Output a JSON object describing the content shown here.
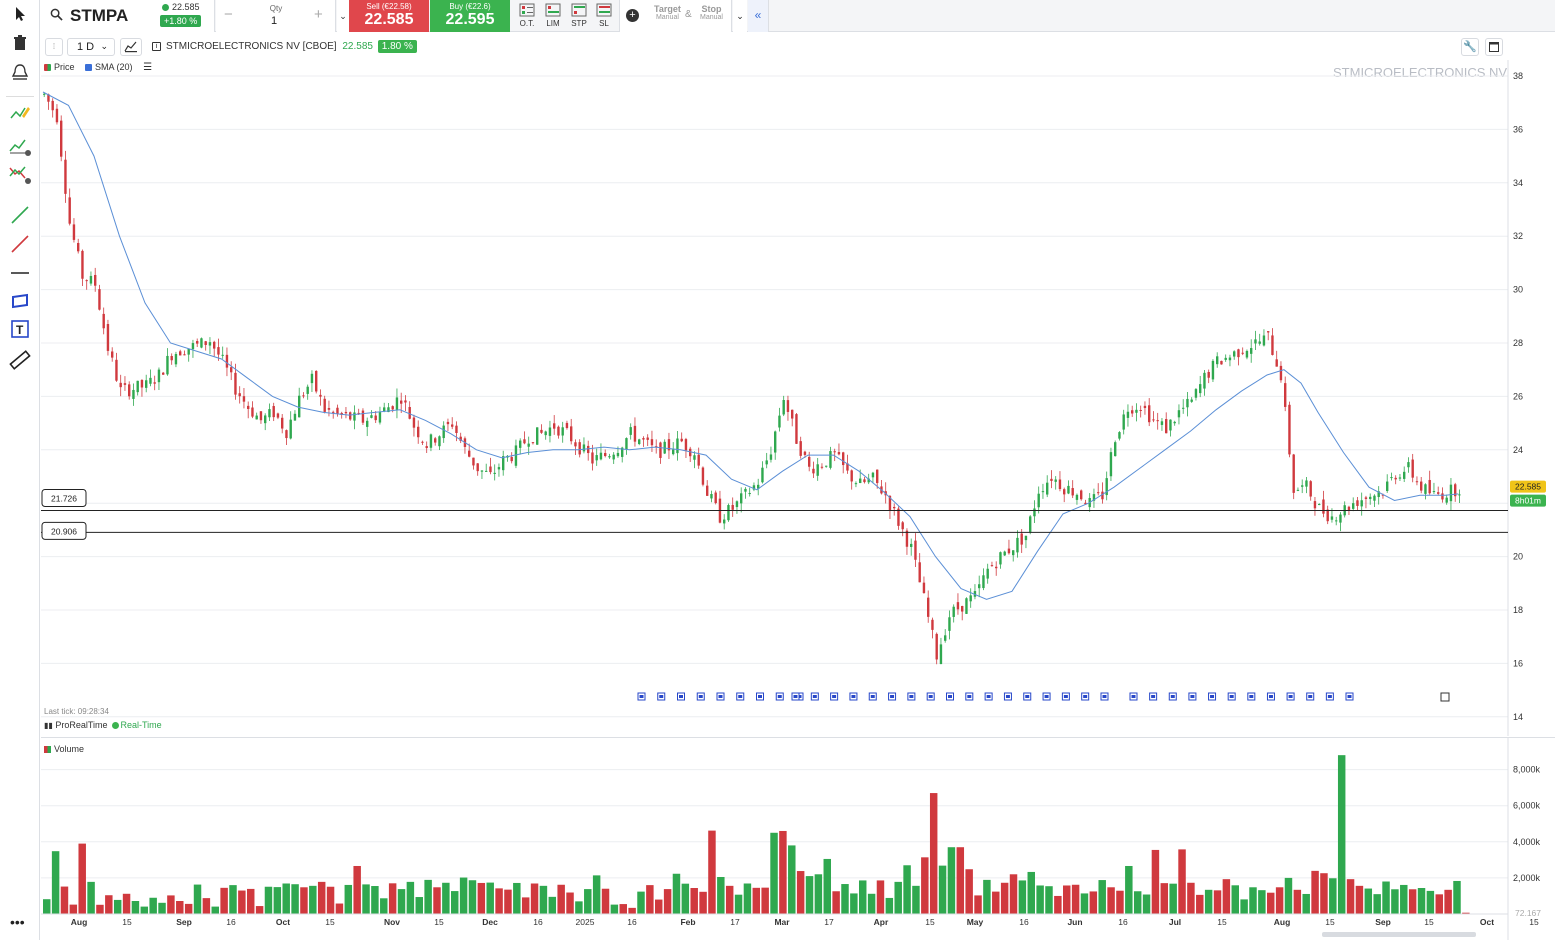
{
  "topbar": {
    "symbol": "STMPA",
    "last_price": "22.585",
    "change": "+1.80 %",
    "qty_label": "Qty",
    "qty_value": "1",
    "minus": "−",
    "plus": "+",
    "sell_label": "Sell (€22.58)",
    "sell_price": "22.585",
    "buy_label": "Buy (€22.6)",
    "buy_price": "22.595",
    "order_types": [
      "O.T.",
      "LIM",
      "STP",
      "SL"
    ],
    "target_label": "Target",
    "target_sub": "Manual",
    "amp": "&",
    "stop_label": "Stop",
    "stop_sub": "Manual"
  },
  "chart_header": {
    "timeframe": "1 D",
    "instrument": "STMICROELECTRONICS NV [CBOE]",
    "price": "22.585",
    "change_badge": "1.80 %",
    "legend_price": "Price",
    "legend_sma": "SMA (20)",
    "watermark": "STMICROELECTRONICS NV",
    "last_tick": "Last tick: 09:28:34",
    "provider": "ProRealTime",
    "realtime": "Real-Time",
    "volume_legend": "Volume",
    "current_price_tag": "22.585",
    "countdown_tag": "8h01m",
    "hline_labels": [
      "21.726",
      "20.906"
    ],
    "volume_last_tag": "72.167"
  },
  "colors": {
    "up": "#2fa84f",
    "down": "#d0393e",
    "sma": "#5b8fd6",
    "accent": "#3a6fd8"
  },
  "chart_data": {
    "type": "candlestick",
    "price_axis": {
      "ticks": [
        14,
        16,
        18,
        20,
        22,
        24,
        26,
        28,
        30,
        32,
        34,
        36,
        38
      ],
      "range": [
        14,
        38.5
      ]
    },
    "volume_axis": {
      "ticks": [
        "2,000k",
        "4,000k",
        "6,000k",
        "8,000k"
      ],
      "range_k": [
        0,
        9200
      ]
    },
    "x_labels": [
      "Aug",
      "15",
      "Sep",
      "16",
      "Oct",
      "15",
      "Nov",
      "15",
      "Dec",
      "16",
      "2025",
      "16",
      "Feb",
      "17",
      "Mar",
      "17",
      "Apr",
      "15",
      "May",
      "16",
      "Jun",
      "16",
      "Jul",
      "15",
      "Aug",
      "15",
      "Sep",
      "15",
      "Oct",
      "15"
    ],
    "horizontal_lines": [
      21.726,
      20.906
    ],
    "price_path": [
      [
        0,
        37.3
      ],
      [
        3,
        36.5
      ],
      [
        6,
        32.5
      ],
      [
        9,
        30.5
      ],
      [
        12,
        30.2
      ],
      [
        15,
        27.8
      ],
      [
        18,
        26.2
      ],
      [
        21,
        26.3
      ],
      [
        24,
        26.4
      ],
      [
        27,
        26.8
      ],
      [
        30,
        27.6
      ],
      [
        33,
        27.8
      ],
      [
        36,
        27.9
      ],
      [
        39,
        28.1
      ],
      [
        42,
        27.3
      ],
      [
        45,
        26.3
      ],
      [
        48,
        25.6
      ],
      [
        51,
        25.1
      ],
      [
        54,
        25.4
      ],
      [
        57,
        24.7
      ],
      [
        60,
        25.9
      ],
      [
        63,
        26.6
      ],
      [
        66,
        25.5
      ],
      [
        69,
        25.3
      ],
      [
        72,
        25.2
      ],
      [
        75,
        25.1
      ],
      [
        78,
        25.3
      ],
      [
        81,
        25.6
      ],
      [
        84,
        26.0
      ],
      [
        87,
        24.9
      ],
      [
        90,
        24.2
      ],
      [
        93,
        24.6
      ],
      [
        96,
        25.0
      ],
      [
        99,
        24.0
      ],
      [
        102,
        23.3
      ],
      [
        105,
        23.0
      ],
      [
        108,
        23.6
      ],
      [
        111,
        23.9
      ],
      [
        114,
        24.5
      ],
      [
        117,
        24.6
      ],
      [
        120,
        24.9
      ],
      [
        123,
        24.6
      ],
      [
        126,
        24.1
      ],
      [
        129,
        23.6
      ],
      [
        132,
        23.8
      ],
      [
        135,
        24.1
      ],
      [
        138,
        24.6
      ],
      [
        141,
        24.3
      ],
      [
        144,
        23.9
      ],
      [
        147,
        24.1
      ],
      [
        150,
        24.3
      ],
      [
        153,
        23.9
      ],
      [
        156,
        22.4
      ],
      [
        159,
        21.5
      ],
      [
        162,
        21.8
      ],
      [
        165,
        22.3
      ],
      [
        168,
        22.8
      ],
      [
        171,
        24.0
      ],
      [
        174,
        26.0
      ],
      [
        177,
        24.4
      ],
      [
        180,
        23.3
      ],
      [
        183,
        23.5
      ],
      [
        186,
        23.8
      ],
      [
        189,
        23.1
      ],
      [
        192,
        22.7
      ],
      [
        195,
        22.9
      ],
      [
        198,
        22.3
      ],
      [
        201,
        21.3
      ],
      [
        204,
        20.3
      ],
      [
        207,
        18.4
      ],
      [
        210,
        16.3
      ],
      [
        213,
        17.8
      ],
      [
        216,
        18.2
      ],
      [
        219,
        18.5
      ],
      [
        222,
        19.5
      ],
      [
        225,
        20.0
      ],
      [
        228,
        20.4
      ],
      [
        231,
        20.8
      ],
      [
        234,
        22.5
      ],
      [
        237,
        23.0
      ],
      [
        240,
        22.6
      ],
      [
        243,
        22.4
      ],
      [
        246,
        22.0
      ],
      [
        249,
        22.3
      ],
      [
        252,
        24.5
      ],
      [
        255,
        25.6
      ],
      [
        258,
        25.7
      ],
      [
        261,
        25.1
      ],
      [
        264,
        24.8
      ],
      [
        267,
        25.4
      ],
      [
        270,
        25.8
      ],
      [
        273,
        26.7
      ],
      [
        276,
        27.3
      ],
      [
        279,
        27.5
      ],
      [
        282,
        27.8
      ],
      [
        285,
        28.0
      ],
      [
        288,
        28.2
      ],
      [
        291,
        26.8
      ],
      [
        294,
        22.5
      ],
      [
        297,
        22.6
      ],
      [
        300,
        21.8
      ],
      [
        303,
        21.5
      ],
      [
        306,
        21.8
      ],
      [
        309,
        22.1
      ],
      [
        312,
        22.3
      ],
      [
        315,
        22.5
      ],
      [
        318,
        23.1
      ],
      [
        321,
        23.3
      ],
      [
        324,
        22.6
      ],
      [
        327,
        22.3
      ],
      [
        330,
        22.4
      ],
      [
        333,
        22.585
      ]
    ],
    "sma_path": [
      [
        0,
        37.4
      ],
      [
        6,
        36.9
      ],
      [
        12,
        35.0
      ],
      [
        18,
        32.0
      ],
      [
        24,
        29.5
      ],
      [
        30,
        28.0
      ],
      [
        36,
        27.7
      ],
      [
        42,
        27.4
      ],
      [
        48,
        26.7
      ],
      [
        54,
        26.0
      ],
      [
        60,
        25.6
      ],
      [
        66,
        25.4
      ],
      [
        72,
        25.3
      ],
      [
        78,
        25.4
      ],
      [
        84,
        25.5
      ],
      [
        90,
        25.1
      ],
      [
        96,
        24.6
      ],
      [
        102,
        24.0
      ],
      [
        108,
        23.7
      ],
      [
        114,
        23.9
      ],
      [
        120,
        24.0
      ],
      [
        126,
        24.0
      ],
      [
        132,
        24.1
      ],
      [
        138,
        24.0
      ],
      [
        144,
        24.1
      ],
      [
        150,
        24.0
      ],
      [
        156,
        23.8
      ],
      [
        162,
        22.9
      ],
      [
        168,
        22.5
      ],
      [
        174,
        23.2
      ],
      [
        180,
        23.8
      ],
      [
        186,
        23.8
      ],
      [
        192,
        23.2
      ],
      [
        198,
        22.4
      ],
      [
        204,
        21.5
      ],
      [
        210,
        20.0
      ],
      [
        216,
        18.8
      ],
      [
        222,
        18.4
      ],
      [
        228,
        18.7
      ],
      [
        234,
        20.2
      ],
      [
        240,
        21.6
      ],
      [
        246,
        22.0
      ],
      [
        252,
        22.6
      ],
      [
        258,
        23.3
      ],
      [
        264,
        24.0
      ],
      [
        270,
        24.7
      ],
      [
        276,
        25.5
      ],
      [
        282,
        26.2
      ],
      [
        288,
        26.8
      ],
      [
        292,
        27.0
      ],
      [
        296,
        26.5
      ],
      [
        300,
        25.4
      ],
      [
        306,
        23.9
      ],
      [
        312,
        22.6
      ],
      [
        318,
        22.1
      ],
      [
        324,
        22.3
      ],
      [
        330,
        22.3
      ],
      [
        333,
        22.35
      ]
    ],
    "volume_k": [
      820,
      3480,
      1520,
      520,
      3900,
      1780,
      510,
      1040,
      780,
      1120,
      720,
      410,
      900,
      620,
      1030,
      720,
      560,
      1630,
      880,
      410,
      1450,
      1600,
      1300,
      1390,
      440,
      1510,
      1490,
      1690,
      1650,
      1480,
      1560,
      1780,
      1510,
      580,
      1610,
      2660,
      1640,
      1550,
      870,
      1700,
      1380,
      1780,
      940,
      1890,
      1480,
      1730,
      1270,
      2020,
      1870,
      1720,
      1740,
      1420,
      1350,
      1720,
      920,
      1690,
      1560,
      950,
      1620,
      1190,
      700,
      1380,
      2140,
      1400,
      520,
      550,
      340,
      1240,
      1600,
      800,
      1380,
      2230,
      1680,
      1440,
      1230,
      4620,
      2050,
      1560,
      1070,
      1690,
      1450,
      1460,
      4500,
      4600,
      3800,
      2380,
      2100,
      2200,
      3050,
      1260,
      1660,
      1140,
      1860,
      1120,
      1860,
      890,
      1780,
      2700,
      1560,
      3140,
      6700,
      2680,
      3700,
      3700,
      2480,
      1030,
      1890,
      1240,
      1730,
      2200,
      1860,
      2330,
      1580,
      1540,
      1000,
      1580,
      1620,
      1140,
      1250,
      1880,
      1480,
      1290,
      2660,
      1260,
      1080,
      3550,
      1710,
      1680,
      3580,
      1730,
      1060,
      1340,
      1310,
      1930,
      1590,
      810,
      1480,
      1320,
      1180,
      1480,
      2000,
      1340,
      1110,
      2390,
      2260,
      1980,
      8800,
      1930,
      1560,
      1410,
      1100,
      1800,
      1370,
      1610,
      1370,
      1440,
      1280,
      1090,
      1340,
      1830,
      72
    ],
    "note_markers_count": 44
  }
}
